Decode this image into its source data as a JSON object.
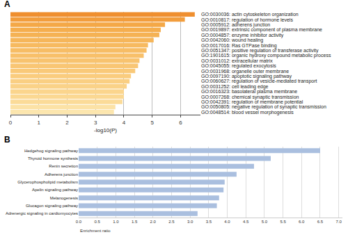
{
  "chart_data": [
    {
      "type": "bar",
      "orientation": "horizontal",
      "title": "A",
      "x_label": "-log10(P)",
      "categories": [
        "GO:0030036: actin cytoskeleton organization",
        "GO:0010817: regulation of hormone levels",
        "GO:0005912: adherens junction",
        "GO:0019897: extrinsic component of plasma membrane",
        "GO:0004857: enzyme inhibitor activity",
        "GO:0042060: wound healing",
        "GO:0017016: Ras GTPase binding",
        "GO:0051347: positive regulation of transferase activity",
        "GO:1901615: organic hydroxy compound metabolic process",
        "GO:0031012: extracellular matrix",
        "GO:0045055: regulated exocytosis",
        "GO:0031968: organelle outer membrane",
        "GO:0097190: apoptotic signaling pathway",
        "GO:0060627: regulation of vesicle-mediated transport",
        "GO:0031252: cell leading edge",
        "GO:0016323: basolateral plasma membrane",
        "GO:0007268: chemical synaptic transmission",
        "GO:0042391: regulation of membrane potential",
        "GO:0050805: negative regulation of synaptic transmission",
        "GO:0048514: blood vessel morphogenesis"
      ],
      "values": [
        6.5,
        6.15,
        5.45,
        5.3,
        5.25,
        5.05,
        4.85,
        4.8,
        4.7,
        4.55,
        4.5,
        4.4,
        4.25,
        4.2,
        4.1,
        4.0,
        4.0,
        3.95,
        3.7,
        3.65
      ],
      "colors": [
        "#ef8f2f",
        "#f29d3c",
        "#f4a847",
        "#f5ae4e",
        "#f5b254",
        "#f6b65a",
        "#f7ba60",
        "#f7bd65",
        "#f8c06a",
        "#f8c36f",
        "#f9c674",
        "#f9c979",
        "#facc7e",
        "#facf83",
        "#fad288",
        "#fbd58d",
        "#fbd892",
        "#fbdb98",
        "#fce2a6",
        "#fce6ae"
      ],
      "xlim": [
        0,
        6.7
      ],
      "xticks": [
        0,
        1,
        2,
        3,
        4,
        5,
        6
      ],
      "grid": true
    },
    {
      "type": "bar",
      "orientation": "horizontal",
      "title": "B",
      "x_label": "Enrichment ratio",
      "categories": [
        "Hedgehog signaling pathway",
        "Thyroid hormone synthesis",
        "Renin secretion",
        "Adherens junction",
        "Glycerophospholipid metabolism",
        "Apelin signaling pathway",
        "Melanogenesis",
        "Glucagon signaling pathway",
        "Adrenergic signaling in cardiomyocytes"
      ],
      "values": [
        6.5,
        5.17,
        4.72,
        4.25,
        3.93,
        3.9,
        3.78,
        3.72,
        3.2
      ],
      "color": "#aabfdf",
      "xlim": [
        0,
        7.1
      ],
      "xticks": [
        {
          "value": 0,
          "label": "0.0"
        },
        0.5,
        {
          "value": 1,
          "label": "1.0"
        },
        1.5,
        {
          "value": 2,
          "label": "2.0"
        },
        2.5,
        {
          "value": 3,
          "label": "3.0"
        },
        3.5,
        {
          "value": 4,
          "label": "4.0"
        },
        4.5,
        {
          "value": 5,
          "label": "5.0"
        },
        5.5,
        {
          "value": 6,
          "label": "6.0"
        },
        6.5,
        {
          "value": 7,
          "label": "7.0"
        }
      ],
      "grid": true
    }
  ]
}
